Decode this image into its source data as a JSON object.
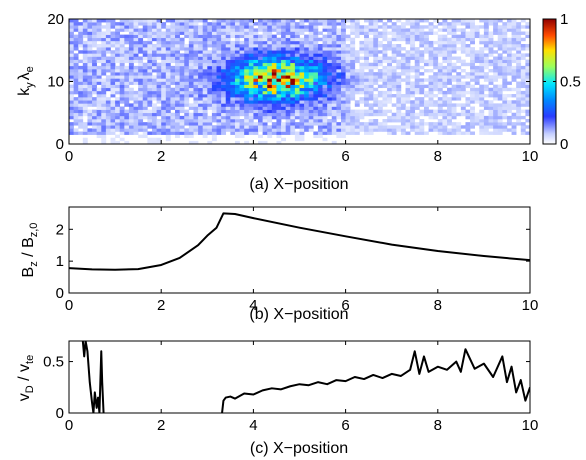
{
  "chart_data": [
    {
      "type": "heatmap",
      "panel_label": "(a) X−position",
      "ylabel_parts": [
        "k",
        "y",
        "λ",
        "e"
      ],
      "xlim": [
        0,
        10
      ],
      "ylim": [
        0,
        20
      ],
      "xticks": [
        "0",
        "2",
        "4",
        "6",
        "8",
        "10"
      ],
      "yticks": [
        "0",
        "10",
        "20"
      ],
      "colorbar": {
        "range": [
          0,
          1
        ],
        "ticks": [
          "0",
          "0.5",
          "1"
        ],
        "colormap": "jet"
      },
      "hotspot": {
        "x_center": 4.5,
        "y_center": 10.5,
        "peak_value": 1.0
      },
      "background_value": 0.1
    },
    {
      "type": "line",
      "panel_label": "(b) X−position",
      "ylabel_parts": [
        "B",
        "z",
        " / B",
        "z,0"
      ],
      "xlim": [
        0,
        10
      ],
      "ylim": [
        0,
        2.7
      ],
      "xticks": [
        "0",
        "2",
        "4",
        "6",
        "8",
        "10"
      ],
      "yticks": [
        "0",
        "1",
        "2"
      ],
      "series": [
        {
          "x": [
            0,
            0.5,
            1.0,
            1.5,
            2.0,
            2.4,
            2.8,
            3.0,
            3.2,
            3.35,
            3.6,
            4.0,
            5.0,
            6.0,
            7.0,
            8.0,
            9.0,
            10.0
          ],
          "y": [
            0.78,
            0.74,
            0.73,
            0.75,
            0.88,
            1.1,
            1.5,
            1.8,
            2.05,
            2.5,
            2.48,
            2.35,
            2.05,
            1.78,
            1.52,
            1.32,
            1.16,
            1.03
          ]
        }
      ]
    },
    {
      "type": "line",
      "panel_label": "(c) X−position",
      "ylabel_parts": [
        "v",
        "D",
        " / v",
        "te"
      ],
      "xlim": [
        0,
        10
      ],
      "ylim": [
        0,
        0.7
      ],
      "xticks": [
        "0",
        "2",
        "4",
        "6",
        "8",
        "10"
      ],
      "yticks": [
        "0",
        "0.5"
      ],
      "series": [
        {
          "x": [
            0.3,
            0.33,
            0.36,
            0.4,
            0.45,
            0.5,
            0.53,
            0.56,
            0.6,
            0.63,
            0.66,
            0.7,
            0.72,
            0.75
          ],
          "y": [
            0.7,
            0.55,
            0.7,
            0.6,
            0.3,
            0.1,
            0.0,
            0.2,
            0.05,
            0.15,
            0.0,
            0.6,
            0.3,
            0.0
          ]
        },
        {
          "x": [
            3.32,
            3.35,
            3.4,
            3.5,
            3.6,
            3.8,
            4.0,
            4.2,
            4.4,
            4.6,
            4.8,
            5.0,
            5.2,
            5.4,
            5.6,
            5.8,
            6.0,
            6.2,
            6.4,
            6.6,
            6.8,
            7.0,
            7.2,
            7.4,
            7.5,
            7.6,
            7.7,
            7.8,
            8.0,
            8.2,
            8.4,
            8.5,
            8.6,
            8.8,
            9.0,
            9.2,
            9.4,
            9.5,
            9.6,
            9.7,
            9.8,
            9.9,
            10.0
          ],
          "y": [
            0.0,
            0.12,
            0.15,
            0.16,
            0.14,
            0.19,
            0.18,
            0.22,
            0.24,
            0.23,
            0.26,
            0.28,
            0.27,
            0.3,
            0.28,
            0.32,
            0.31,
            0.35,
            0.33,
            0.37,
            0.34,
            0.38,
            0.36,
            0.42,
            0.6,
            0.38,
            0.55,
            0.4,
            0.45,
            0.42,
            0.5,
            0.4,
            0.62,
            0.43,
            0.48,
            0.35,
            0.55,
            0.3,
            0.45,
            0.2,
            0.32,
            0.12,
            0.25
          ]
        }
      ]
    }
  ]
}
